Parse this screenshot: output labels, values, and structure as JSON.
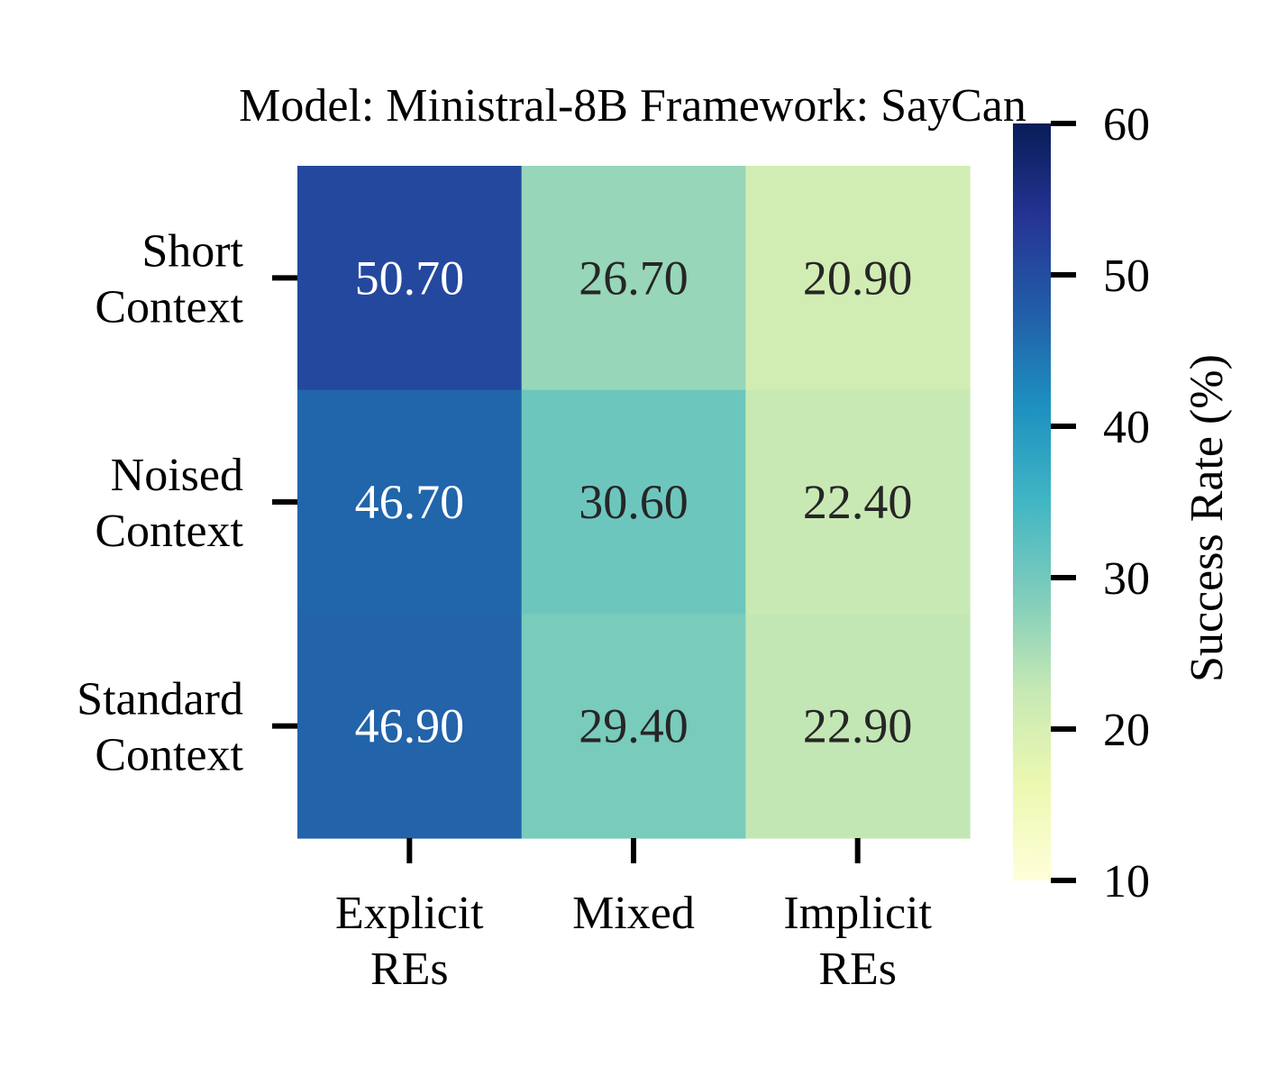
{
  "chart_data": {
    "type": "heatmap",
    "title": "Model: Ministral-8B  Framework: SayCan",
    "x_categories": [
      [
        "Explicit",
        "REs"
      ],
      [
        "Mixed"
      ],
      [
        "Implicit",
        "REs"
      ]
    ],
    "y_categories": [
      [
        "Short",
        "Context"
      ],
      [
        "Noised",
        "Context"
      ],
      [
        "Standard",
        "Context"
      ]
    ],
    "values": [
      [
        50.7,
        26.7,
        20.9
      ],
      [
        46.7,
        30.6,
        22.4
      ],
      [
        46.9,
        29.4,
        22.9
      ]
    ],
    "value_format": "0.00",
    "colorbar": {
      "label": "Success Rate (%)",
      "min": 10,
      "max": 60,
      "ticks": [
        10,
        20,
        30,
        40,
        50,
        60
      ],
      "colormap": "YlGnBu",
      "colormap_stops": [
        "#ffffd9",
        "#edf8b1",
        "#c7e9b4",
        "#7fcdbb",
        "#41b6c4",
        "#1d91c0",
        "#225ea8",
        "#253494",
        "#081d58"
      ]
    },
    "annotation_colors": {
      "dark": "#262626",
      "light": "#ffffff"
    }
  }
}
